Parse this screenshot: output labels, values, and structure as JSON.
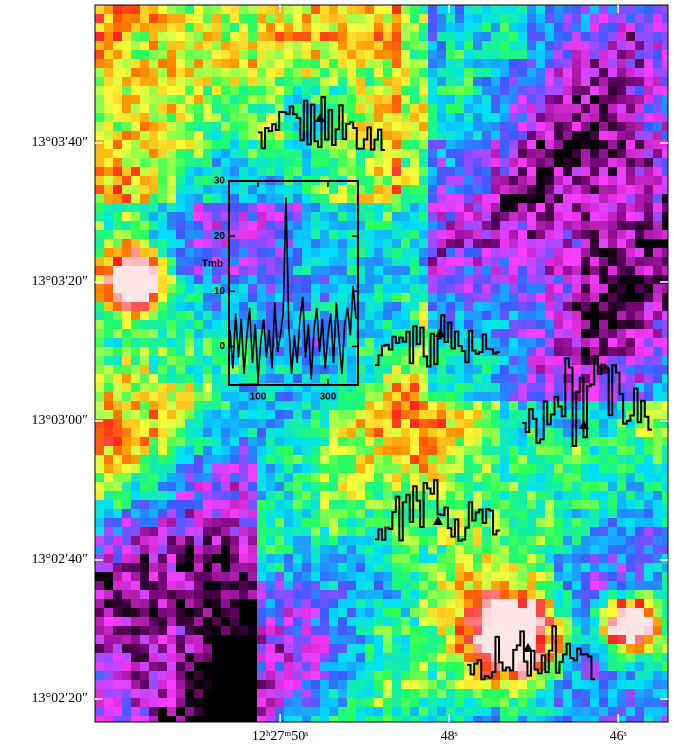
{
  "chart_data": [
    {
      "type": "image",
      "xlim": [
        52.19,
        45.41
      ],
      "xticks": [
        {
          "value": 50,
          "label": "12ʰ27ᵐ50ˢ"
        },
        {
          "value": 48,
          "label": "48ˢ"
        },
        {
          "value": 46,
          "label": "46ˢ"
        }
      ],
      "ylim": [
        16.69,
        119.86
      ],
      "yticks": [
        {
          "value": 100,
          "label": "13°03′40″"
        },
        {
          "value": 80,
          "label": "13°03′20″"
        },
        {
          "value": 60,
          "label": "13°03′00″"
        },
        {
          "value": 40,
          "label": "13°02′40″"
        },
        {
          "value": 20,
          "label": "13°02′20″"
        }
      ]
    },
    {
      "type": "line",
      "y_label": "Tmb",
      "color": "#000000",
      "x": [
        20,
        28,
        36,
        44,
        52,
        60,
        68,
        76,
        84,
        92,
        100,
        108,
        116,
        124,
        132,
        140,
        148,
        156,
        164,
        172,
        180,
        188,
        196,
        204,
        212,
        220,
        228,
        236,
        244,
        252,
        260,
        268,
        276,
        284,
        292,
        300,
        308,
        316,
        324,
        332,
        340,
        348,
        356,
        364,
        372,
        380
      ],
      "values": [
        3,
        -4,
        6,
        -2,
        5,
        -5,
        2,
        7,
        -3,
        4,
        -6,
        1,
        5,
        -2,
        3,
        -4,
        8,
        -1,
        2,
        6,
        27,
        4,
        -5,
        2,
        -3,
        5,
        9,
        -2,
        4,
        -6,
        3,
        7,
        -1,
        5,
        -4,
        2,
        6,
        -3,
        8,
        1,
        -5,
        4,
        7,
        2,
        11,
        5
      ],
      "xlim": [
        17,
        386
      ],
      "xticks": [
        100,
        300
      ],
      "ylim": [
        -7,
        30
      ],
      "yticks": [
        0,
        10,
        20,
        30
      ]
    }
  ]
}
